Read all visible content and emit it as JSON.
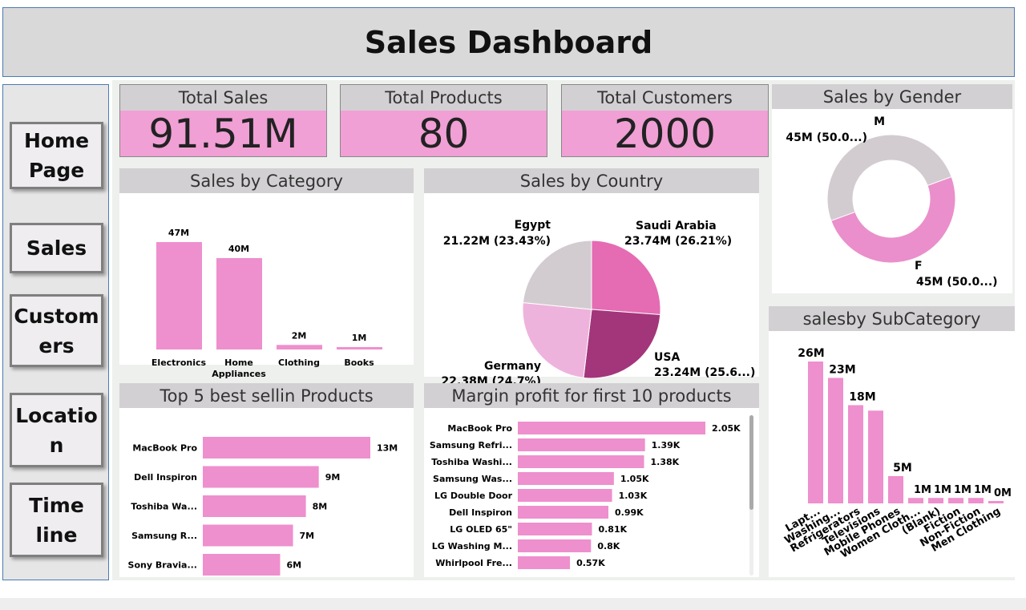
{
  "title": "Sales Dashboard",
  "nav": [
    {
      "label": "Home Page"
    },
    {
      "label": "Sales"
    },
    {
      "label": "Custom ers"
    },
    {
      "label": "Locatio n"
    },
    {
      "label": "Time line"
    }
  ],
  "kpis": [
    {
      "label": "Total Sales",
      "value": "91.51M"
    },
    {
      "label": "Total Products",
      "value": "80"
    },
    {
      "label": "Total Customers",
      "value": "2000"
    }
  ],
  "colors": {
    "bar": "#ee8fce",
    "header": "#d3d0d3",
    "kpi": "#f0a0d5",
    "border": "#4a7ab5"
  },
  "chart_data": [
    {
      "id": "gender",
      "type": "pie",
      "donut": true,
      "title": "Sales by Gender",
      "categories": [
        "M",
        "F"
      ],
      "values": [
        45,
        45
      ],
      "labels": [
        "45M (50.0...)",
        "45M (50.0...)"
      ],
      "colors": [
        "#d2ccd1",
        "#ea8fcb"
      ]
    },
    {
      "id": "category",
      "type": "bar",
      "title": "Sales by Category",
      "categories": [
        "Electronics",
        "Home Appliances",
        "Clothing",
        "Books"
      ],
      "values": [
        47,
        40,
        2,
        1
      ],
      "labels": [
        "47M",
        "40M",
        "2M",
        "1M"
      ]
    },
    {
      "id": "country",
      "type": "pie",
      "title": "Sales by Country",
      "categories": [
        "Saudi Arabia",
        "USA",
        "Germany",
        "Egypt"
      ],
      "values": [
        23.74,
        23.24,
        22.38,
        21.22
      ],
      "labels": [
        "23.74M (26.21%)",
        "23.24M (25.6...)",
        "22.38M (24.7%)",
        "21.22M (23.43%)"
      ],
      "colors": [
        "#e56bb3",
        "#a3367a",
        "#eeb3dc",
        "#d2ccd1"
      ]
    },
    {
      "id": "subcategory",
      "type": "bar",
      "title": "salesby SubCategory",
      "categories": [
        "Lapt...",
        "Washing...",
        "Refrigerators",
        "Televisions",
        "Mobile Phones",
        "Women Cloth...",
        "(Blank)",
        "Fiction",
        "Non-Fiction",
        "Men Clothing"
      ],
      "values": [
        26,
        23,
        18,
        17,
        5,
        1,
        1,
        1,
        1,
        0.3
      ],
      "labels": [
        "26M",
        "23M",
        "18M",
        "",
        "5M",
        "1M",
        "1M",
        "1M",
        "1M",
        "0M"
      ]
    },
    {
      "id": "top5",
      "type": "bar",
      "orientation": "horizontal",
      "title": "Top 5 best sellin Products",
      "categories": [
        "MacBook Pro",
        "Dell Inspiron",
        "Toshiba Wa...",
        "Samsung R...",
        "Sony Bravia..."
      ],
      "values": [
        13,
        9,
        8,
        7,
        6
      ],
      "labels": [
        "13M",
        "9M",
        "8M",
        "7M",
        "6M"
      ]
    },
    {
      "id": "margin",
      "type": "bar",
      "orientation": "horizontal",
      "title": "Margin profit for first 10 products",
      "categories": [
        "MacBook Pro",
        "Samsung Refri...",
        "Toshiba Washi...",
        "Samsung Was...",
        "LG Double Door",
        "Dell Inspiron",
        "LG OLED 65\"",
        "LG Washing M...",
        "Whirlpool Fre..."
      ],
      "values": [
        2.05,
        1.39,
        1.38,
        1.05,
        1.03,
        0.99,
        0.81,
        0.8,
        0.57
      ],
      "labels": [
        "2.05K",
        "1.39K",
        "1.38K",
        "1.05K",
        "1.03K",
        "0.99K",
        "0.81K",
        "0.8K",
        "0.57K"
      ]
    }
  ]
}
